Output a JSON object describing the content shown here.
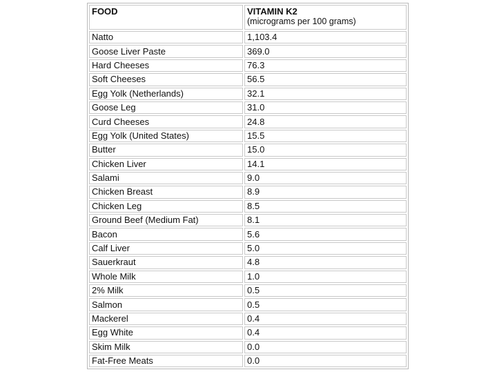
{
  "table": {
    "header": {
      "food": "FOOD",
      "vitamin": "VITAMIN K2",
      "unit": "(micrograms per 100 grams)"
    },
    "rows": [
      [
        "Natto",
        "1,103.4"
      ],
      [
        "Goose Liver Paste",
        "369.0"
      ],
      [
        "Hard Cheeses",
        "76.3"
      ],
      [
        "Soft Cheeses",
        "56.5"
      ],
      [
        "Egg Yolk (Netherlands)",
        "32.1"
      ],
      [
        "Goose Leg",
        "31.0"
      ],
      [
        "Curd Cheeses",
        "24.8"
      ],
      [
        "Egg Yolk (United States)",
        "15.5"
      ],
      [
        "Butter",
        "15.0"
      ],
      [
        "Chicken Liver",
        "14.1"
      ],
      [
        "Salami",
        "9.0"
      ],
      [
        "Chicken Breast",
        "8.9"
      ],
      [
        "Chicken Leg",
        "8.5"
      ],
      [
        "Ground Beef (Medium Fat)",
        "8.1"
      ],
      [
        "Bacon",
        "5.6"
      ],
      [
        "Calf Liver",
        "5.0"
      ],
      [
        "Sauerkraut",
        "4.8"
      ],
      [
        "Whole Milk",
        "1.0"
      ],
      [
        "2% Milk",
        "0.5"
      ],
      [
        "Salmon",
        "0.5"
      ],
      [
        "Mackerel",
        "0.4"
      ],
      [
        "Egg White",
        "0.4"
      ],
      [
        "Skim Milk",
        "0.0"
      ],
      [
        "Fat-Free Meats",
        "0.0"
      ]
    ]
  }
}
